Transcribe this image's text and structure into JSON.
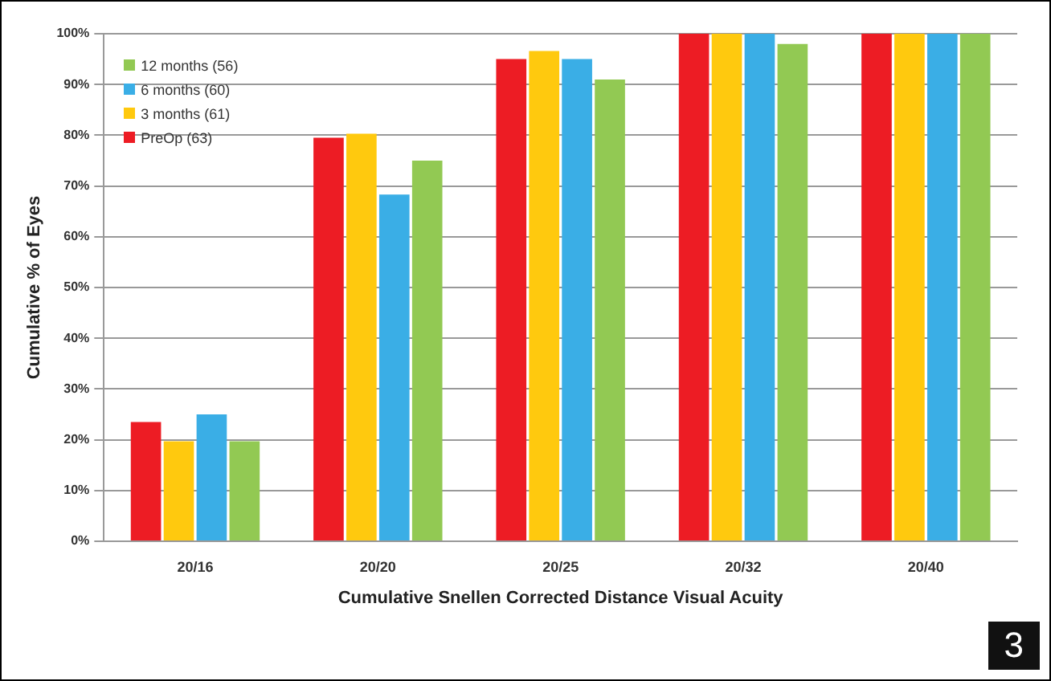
{
  "chart_data": {
    "type": "bar",
    "xlabel": "Cumulative Snellen Corrected Distance Visual Acuity",
    "ylabel": "Cumulative % of Eyes",
    "categories": [
      "20/16",
      "20/20",
      "20/25",
      "20/32",
      "20/40"
    ],
    "series": [
      {
        "name": "PreOp (63)",
        "color": "#ed1c24",
        "values": [
          23.5,
          79.5,
          95,
          100,
          100
        ]
      },
      {
        "name": "3 months (61)",
        "color": "#ffc90e",
        "values": [
          19.7,
          80.3,
          96.6,
          100,
          100
        ]
      },
      {
        "name": "6 months (60)",
        "color": "#3aaee6",
        "values": [
          25,
          68.3,
          95,
          100,
          100
        ]
      },
      {
        "name": "12 months (56)",
        "color": "#92c953",
        "values": [
          19.7,
          75,
          91,
          98,
          100
        ]
      }
    ],
    "ylim": [
      0,
      100
    ],
    "yticks": [
      {
        "value": 0,
        "label": "0%"
      },
      {
        "value": 10,
        "label": "10%"
      },
      {
        "value": 20,
        "label": "20%"
      },
      {
        "value": 30,
        "label": "30%"
      },
      {
        "value": 40,
        "label": "40%"
      },
      {
        "value": 50,
        "label": "50%"
      },
      {
        "value": 60,
        "label": "60%"
      },
      {
        "value": 70,
        "label": "70%"
      },
      {
        "value": 80,
        "label": "80%"
      },
      {
        "value": 90,
        "label": "90%"
      },
      {
        "value": 100,
        "label": "100%"
      }
    ],
    "grid": "y",
    "legend": "top left",
    "annotations": [
      "3"
    ]
  }
}
